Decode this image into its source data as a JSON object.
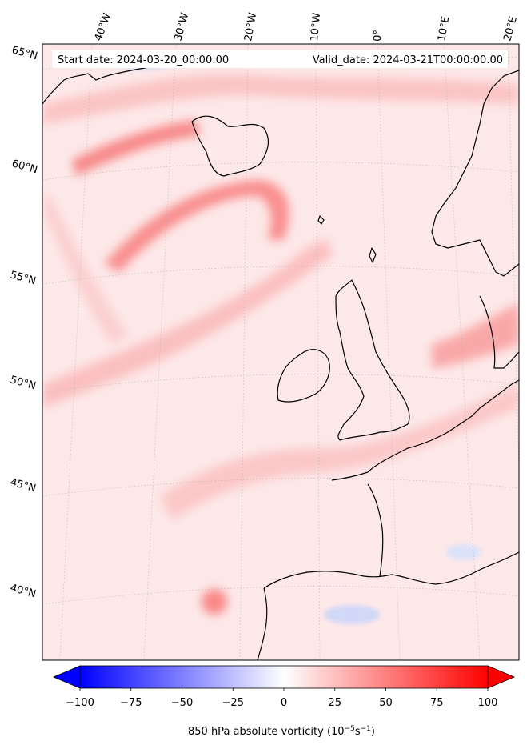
{
  "header": {
    "start_date": "Start date: 2024-03-20_00:00:00",
    "valid_date": "Valid_date: 2024-03-21T00:00:00.00"
  },
  "map": {
    "lon_labels": [
      "40°W",
      "30°W",
      "20°W",
      "10°W",
      "0°",
      "10°E",
      "20°E"
    ],
    "lat_labels": [
      "65°N",
      "60°N",
      "55°N",
      "50°N",
      "45°N",
      "40°N"
    ],
    "field_colors": {
      "background": "#fde8e8",
      "medium": "#fbc8c8",
      "strong": "#f98888",
      "negative": "#c8d0f8",
      "coast": "#000000"
    }
  },
  "colorbar": {
    "ticks": [
      "−100",
      "−75",
      "−50",
      "−25",
      "0",
      "25",
      "50",
      "75",
      "100"
    ],
    "label": "850 hPa absolute vorticity (10",
    "label_exp1": "−5",
    "label_mid": "s",
    "label_exp2": "−1",
    "label_end": ")",
    "cmap": "bwr",
    "range": [
      -100,
      100
    ]
  }
}
